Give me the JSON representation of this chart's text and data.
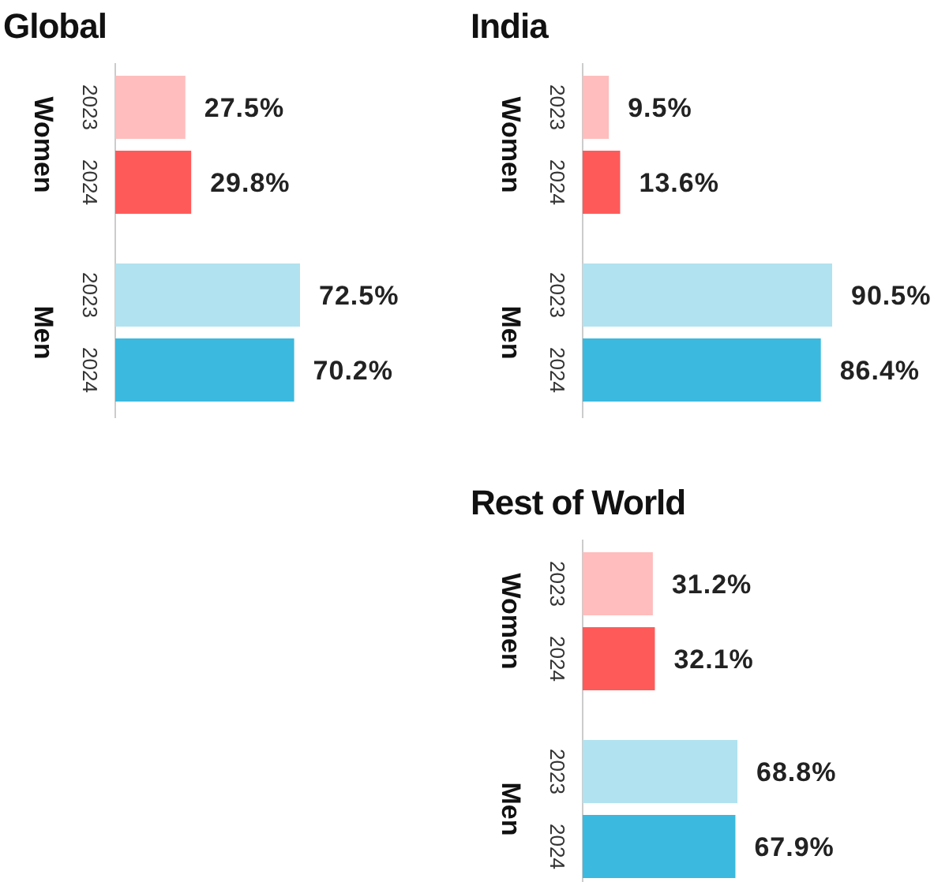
{
  "chart_data": [
    {
      "type": "bar",
      "orientation": "horizontal",
      "title": "Global",
      "categories": [
        "2023",
        "2024",
        "2023",
        "2024"
      ],
      "annotations": [
        "Women",
        "Men"
      ],
      "values": [
        27.5,
        29.8,
        72.5,
        70.2
      ],
      "value_labels": [
        "27.5%",
        "29.8%",
        "72.5%",
        "70.2%"
      ],
      "colors": [
        "#ffbdbd",
        "#ff5a5a",
        "#b1e2f0",
        "#3bb9de"
      ]
    },
    {
      "type": "bar",
      "orientation": "horizontal",
      "title": "India",
      "categories": [
        "2023",
        "2024",
        "2023",
        "2024"
      ],
      "annotations": [
        "Women",
        "Men"
      ],
      "values": [
        9.5,
        13.6,
        90.5,
        86.4
      ],
      "value_labels": [
        "9.5%",
        "13.6%",
        "90.5%",
        "86.4%"
      ],
      "colors": [
        "#ffbdbd",
        "#ff5a5a",
        "#b1e2f0",
        "#3bb9de"
      ]
    },
    {
      "type": "bar",
      "orientation": "horizontal",
      "title": "Rest of World",
      "categories": [
        "2023",
        "2024",
        "2023",
        "2024"
      ],
      "annotations": [
        "Women",
        "Men"
      ],
      "values": [
        31.2,
        32.1,
        68.8,
        67.9
      ],
      "value_labels": [
        "31.2%",
        "32.1%",
        "68.8%",
        "67.9%"
      ],
      "colors": [
        "#ffbdbd",
        "#ff5a5a",
        "#b1e2f0",
        "#3bb9de"
      ]
    }
  ]
}
